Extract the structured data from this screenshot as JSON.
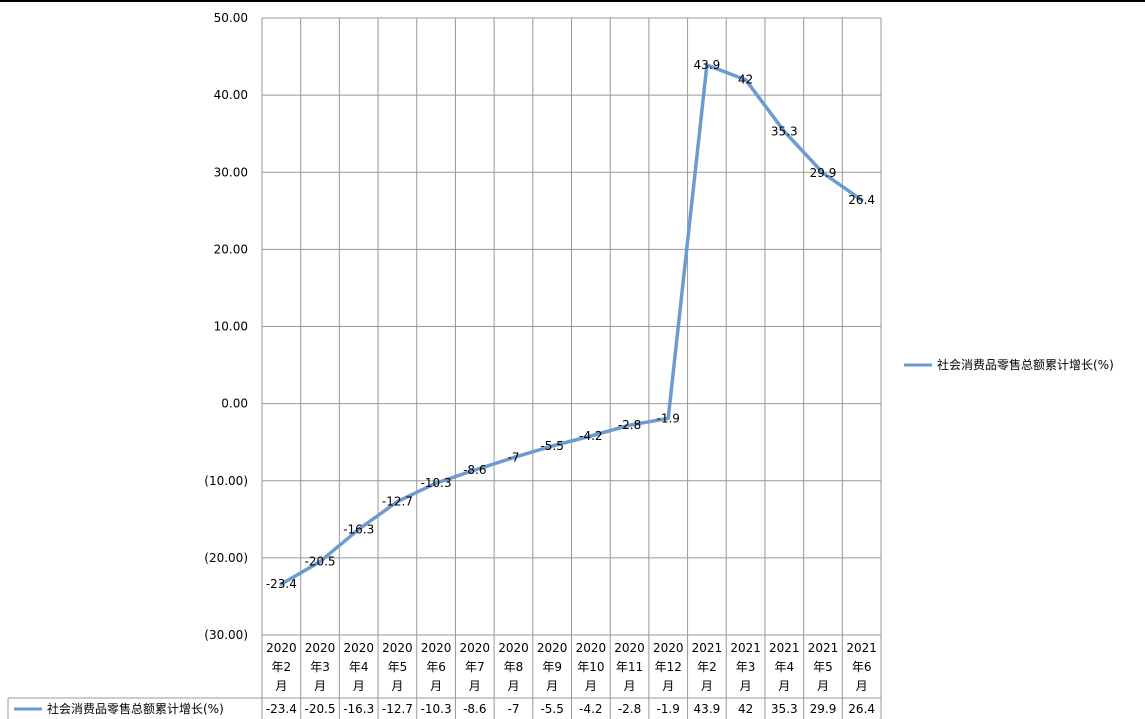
{
  "chart_data": {
    "type": "line",
    "categories": [
      [
        "2020",
        "年2",
        "月"
      ],
      [
        "2020",
        "年3",
        "月"
      ],
      [
        "2020",
        "年4",
        "月"
      ],
      [
        "2020",
        "年5",
        "月"
      ],
      [
        "2020",
        "年6",
        "月"
      ],
      [
        "2020",
        "年7",
        "月"
      ],
      [
        "2020",
        "年8",
        "月"
      ],
      [
        "2020",
        "年9",
        "月"
      ],
      [
        "2020",
        "年10",
        "月"
      ],
      [
        "2020",
        "年11",
        "月"
      ],
      [
        "2020",
        "年12",
        "月"
      ],
      [
        "2021",
        "年2",
        "月"
      ],
      [
        "2021",
        "年3",
        "月"
      ],
      [
        "2021",
        "年4",
        "月"
      ],
      [
        "2021",
        "年5",
        "月"
      ],
      [
        "2021",
        "年6",
        "月"
      ]
    ],
    "series": [
      {
        "name": "社会消费品零售总额累计增长(%)",
        "values": [
          -23.4,
          -20.5,
          -16.3,
          -12.7,
          -10.3,
          -8.6,
          -7,
          -5.5,
          -4.2,
          -2.8,
          -1.9,
          43.9,
          42,
          35.3,
          29.9,
          26.4
        ],
        "value_labels": [
          "-23.4",
          "-20.5",
          "-16.3",
          "-12.7",
          "-10.3",
          "-8.6",
          "-7",
          "-5.5",
          "-4.2",
          "-2.8",
          "-1.9",
          "43.9",
          "42",
          "35.3",
          "29.9",
          "26.4"
        ],
        "color": "#6b9bd1"
      }
    ],
    "ylim": [
      -30,
      50
    ],
    "yticks": [
      50,
      40,
      30,
      20,
      10,
      0,
      -10,
      -20,
      -30
    ],
    "ytick_labels": [
      "50.00",
      "40.00",
      "30.00",
      "20.00",
      "10.00",
      "0.00",
      "(10.00)",
      "(20.00)",
      "(30.00)"
    ],
    "grid": true,
    "legend": {
      "position": "right",
      "label": "社会消费品零售总额累计增长(%)"
    },
    "data_table": true
  }
}
